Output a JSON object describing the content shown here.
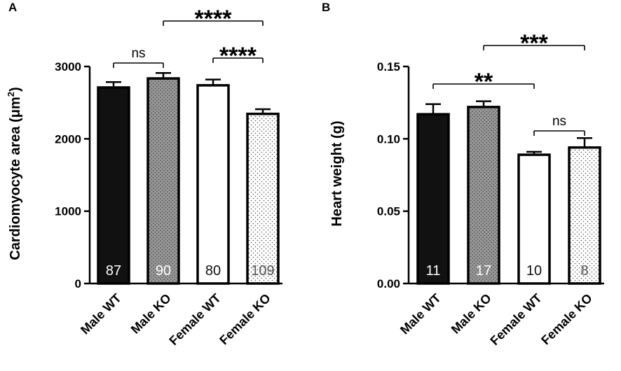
{
  "chart_data": [
    {
      "type": "bar",
      "panel": "A",
      "ylabel": "Cardiomyocyte area (μm",
      "ylabel_sup": "2",
      "ylabel_close": ")",
      "categories": [
        "Male WT",
        "Male KO",
        "Female WT",
        "Female KO"
      ],
      "values": [
        2710,
        2835,
        2740,
        2345
      ],
      "errors": [
        75,
        75,
        80,
        65
      ],
      "n_labels": [
        "87",
        "90",
        "80",
        "109"
      ],
      "fills": [
        "solid-black",
        "gray-dots",
        "white",
        "white-dots"
      ],
      "ylim": [
        0,
        3000
      ],
      "yticks": [
        0,
        1000,
        2000,
        3000
      ],
      "ytick_labels": [
        "0",
        "1000",
        "2000",
        "3000"
      ],
      "significance": [
        {
          "from": 0,
          "to": 1,
          "label": "ns"
        },
        {
          "from": 1,
          "to": 3,
          "label": "****"
        },
        {
          "from": 2,
          "to": 3,
          "label": "****"
        }
      ]
    },
    {
      "type": "bar",
      "panel": "B",
      "ylabel": "Heart weight (g)",
      "categories": [
        "Male WT",
        "Male KO",
        "Female WT",
        "Female KO"
      ],
      "values": [
        0.117,
        0.122,
        0.089,
        0.094
      ],
      "errors": [
        0.007,
        0.004,
        0.002,
        0.0065
      ],
      "n_labels": [
        "11",
        "17",
        "10",
        "8"
      ],
      "fills": [
        "solid-black",
        "gray-dots",
        "white",
        "white-dots"
      ],
      "ylim": [
        0,
        0.15
      ],
      "yticks": [
        0,
        0.05,
        0.1,
        0.15
      ],
      "ytick_labels": [
        "0.00",
        "0.05",
        "0.10",
        "0.15"
      ],
      "significance": [
        {
          "from": 0,
          "to": 2,
          "label": "**"
        },
        {
          "from": 1,
          "to": 3,
          "label": "***"
        },
        {
          "from": 2,
          "to": 3,
          "label": "ns"
        }
      ]
    }
  ]
}
